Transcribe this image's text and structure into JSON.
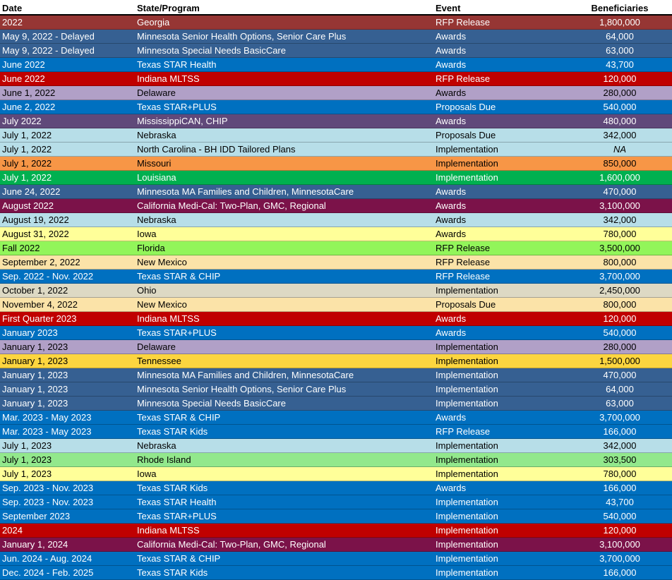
{
  "header": {
    "date": "Date",
    "program": "State/Program",
    "event": "Event",
    "beneficiaries": "Beneficiaries"
  },
  "rows": [
    {
      "date": "2022",
      "program": "Georgia",
      "event": "RFP Release",
      "beneficiaries": "1,800,000",
      "bg": "#963634",
      "fg": "#ffffff"
    },
    {
      "date": "May 9, 2022 - Delayed",
      "program": "Minnesota Senior Health Options, Senior Care Plus",
      "event": "Awards",
      "beneficiaries": "64,000",
      "bg": "#366092",
      "fg": "#ffffff"
    },
    {
      "date": "May 9, 2022 - Delayed",
      "program": "Minnesota Special Needs BasicCare",
      "event": "Awards",
      "beneficiaries": "63,000",
      "bg": "#366092",
      "fg": "#ffffff"
    },
    {
      "date": "June 2022",
      "program": "Texas STAR Health",
      "event": "Awards",
      "beneficiaries": "43,700",
      "bg": "#0070c0",
      "fg": "#ffffff"
    },
    {
      "date": "June 2022",
      "program": "Indiana MLTSS",
      "event": "RFP Release",
      "beneficiaries": "120,000",
      "bg": "#c00000",
      "fg": "#ffffff"
    },
    {
      "date": "June 1, 2022",
      "program": "Delaware",
      "event": "Awards",
      "beneficiaries": "280,000",
      "bg": "#b1a0c7",
      "fg": "#000000"
    },
    {
      "date": "June 2, 2022",
      "program": "Texas STAR+PLUS",
      "event": "Proposals Due",
      "beneficiaries": "540,000",
      "bg": "#0070c0",
      "fg": "#ffffff"
    },
    {
      "date": "July 2022",
      "program": "MississippiCAN, CHIP",
      "event": "Awards",
      "beneficiaries": "480,000",
      "bg": "#60497a",
      "fg": "#ffffff"
    },
    {
      "date": "July 1, 2022",
      "program": "Nebraska",
      "event": "Proposals Due",
      "beneficiaries": "342,000",
      "bg": "#b7dee8",
      "fg": "#000000"
    },
    {
      "date": "July 1, 2022",
      "program": "North Carolina -  BH IDD Tailored Plans",
      "event": "Implementation",
      "beneficiaries": "NA",
      "bg": "#b7dee8",
      "fg": "#000000",
      "italic": true
    },
    {
      "date": "July 1, 2022",
      "program": "Missouri",
      "event": "Implementation",
      "beneficiaries": "850,000",
      "bg": "#f79646",
      "fg": "#000000"
    },
    {
      "date": "July 1, 2022",
      "program": "Louisiana",
      "event": "Implementation",
      "beneficiaries": "1,600,000",
      "bg": "#00b050",
      "fg": "#ffffff"
    },
    {
      "date": "June 24, 2022",
      "program": "Minnesota MA Families and Children, MinnesotaCare",
      "event": "Awards",
      "beneficiaries": "470,000",
      "bg": "#366092",
      "fg": "#ffffff"
    },
    {
      "date": "August 2022",
      "program": "California Medi-Cal: Two-Plan, GMC, Regional",
      "event": "Awards",
      "beneficiaries": "3,100,000",
      "bg": "#7b1249",
      "fg": "#ffffff"
    },
    {
      "date": "August 19, 2022",
      "program": "Nebraska",
      "event": "Awards",
      "beneficiaries": "342,000",
      "bg": "#b7dee8",
      "fg": "#000000"
    },
    {
      "date": "August 31, 2022",
      "program": "Iowa",
      "event": "Awards",
      "beneficiaries": "780,000",
      "bg": "#ffff99",
      "fg": "#000000"
    },
    {
      "date": "Fall 2022",
      "program": "Florida",
      "event": "RFP Release",
      "beneficiaries": "3,500,000",
      "bg": "#92f55a",
      "fg": "#000000"
    },
    {
      "date": "September 2, 2022",
      "program": "New Mexico",
      "event": "RFP Release",
      "beneficiaries": "800,000",
      "bg": "#fbe3a8",
      "fg": "#000000"
    },
    {
      "date": "Sep. 2022 - Nov. 2022",
      "program": "Texas STAR & CHIP",
      "event": "RFP Release",
      "beneficiaries": "3,700,000",
      "bg": "#0070c0",
      "fg": "#ffffff"
    },
    {
      "date": "October 1, 2022",
      "program": "Ohio",
      "event": "Implementation",
      "beneficiaries": "2,450,000",
      "bg": "#ddd9c4",
      "fg": "#000000"
    },
    {
      "date": "November 4, 2022",
      "program": "New Mexico",
      "event": "Proposals Due",
      "beneficiaries": "800,000",
      "bg": "#fbe3a8",
      "fg": "#000000"
    },
    {
      "date": "First Quarter 2023",
      "program": "Indiana MLTSS",
      "event": "Awards",
      "beneficiaries": "120,000",
      "bg": "#c00000",
      "fg": "#ffffff"
    },
    {
      "date": "January 2023",
      "program": "Texas STAR+PLUS",
      "event": "Awards",
      "beneficiaries": "540,000",
      "bg": "#0070c0",
      "fg": "#ffffff"
    },
    {
      "date": "January 1, 2023",
      "program": "Delaware",
      "event": "Implementation",
      "beneficiaries": "280,000",
      "bg": "#b1a0c7",
      "fg": "#000000"
    },
    {
      "date": "January 1, 2023",
      "program": "Tennessee",
      "event": "Implementation",
      "beneficiaries": "1,500,000",
      "bg": "#fcd53f",
      "fg": "#000000"
    },
    {
      "date": "January 1, 2023",
      "program": "Minnesota MA Families and Children, MinnesotaCare",
      "event": "Implementation",
      "beneficiaries": "470,000",
      "bg": "#366092",
      "fg": "#ffffff"
    },
    {
      "date": "January 1, 2023",
      "program": "Minnesota Senior Health Options, Senior Care Plus",
      "event": "Implementation",
      "beneficiaries": "64,000",
      "bg": "#366092",
      "fg": "#ffffff"
    },
    {
      "date": "January 1, 2023",
      "program": "Minnesota Special Needs BasicCare",
      "event": "Implementation",
      "beneficiaries": "63,000",
      "bg": "#366092",
      "fg": "#ffffff"
    },
    {
      "date": "Mar. 2023 - May 2023",
      "program": "Texas STAR & CHIP",
      "event": "Awards",
      "beneficiaries": "3,700,000",
      "bg": "#0070c0",
      "fg": "#ffffff"
    },
    {
      "date": "Mar. 2023 - May 2023",
      "program": "Texas STAR Kids",
      "event": "RFP Release",
      "beneficiaries": "166,000",
      "bg": "#0070c0",
      "fg": "#ffffff"
    },
    {
      "date": "July 1, 2023",
      "program": "Nebraska",
      "event": "Implementation",
      "beneficiaries": "342,000",
      "bg": "#b7dee8",
      "fg": "#000000"
    },
    {
      "date": "July 1, 2023",
      "program": "Rhode Island",
      "event": "Implementation",
      "beneficiaries": "303,500",
      "bg": "#92e88c",
      "fg": "#000000"
    },
    {
      "date": "July 1, 2023",
      "program": "Iowa",
      "event": "Implementation",
      "beneficiaries": "780,000",
      "bg": "#ffff99",
      "fg": "#000000"
    },
    {
      "date": "Sep. 2023 - Nov. 2023",
      "program": "Texas STAR Kids",
      "event": "Awards",
      "beneficiaries": "166,000",
      "bg": "#0070c0",
      "fg": "#ffffff"
    },
    {
      "date": "Sep. 2023 - Nov. 2023",
      "program": "Texas STAR Health",
      "event": "Implementation",
      "beneficiaries": "43,700",
      "bg": "#0070c0",
      "fg": "#ffffff"
    },
    {
      "date": "September 2023",
      "program": "Texas STAR+PLUS",
      "event": "Implementation",
      "beneficiaries": "540,000",
      "bg": "#0070c0",
      "fg": "#ffffff"
    },
    {
      "date": "2024",
      "program": "Indiana MLTSS",
      "event": "Implementation",
      "beneficiaries": "120,000",
      "bg": "#c00000",
      "fg": "#ffffff"
    },
    {
      "date": "January 1, 2024",
      "program": "California Medi-Cal: Two-Plan, GMC, Regional",
      "event": "Implementation",
      "beneficiaries": "3,100,000",
      "bg": "#7b1249",
      "fg": "#ffffff"
    },
    {
      "date": "Jun. 2024 - Aug. 2024",
      "program": "Texas STAR & CHIP",
      "event": "Implementation",
      "beneficiaries": "3,700,000",
      "bg": "#0070c0",
      "fg": "#ffffff"
    },
    {
      "date": "Dec. 2024 - Feb. 2025",
      "program": "Texas STAR Kids",
      "event": "Implementation",
      "beneficiaries": "166,000",
      "bg": "#0070c0",
      "fg": "#ffffff"
    }
  ]
}
